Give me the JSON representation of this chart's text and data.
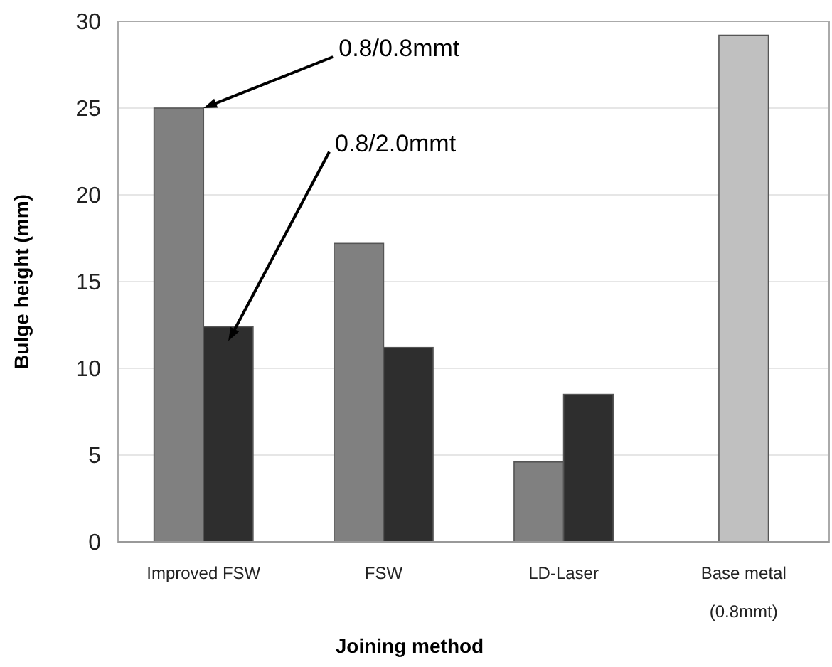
{
  "chart_data": {
    "type": "bar",
    "xlabel": "Joining method",
    "ylabel": "Bulge height  (mm)",
    "categories": [
      "Improved FSW",
      "FSW",
      "LD-Laser",
      "Base metal\n(0.8mmt)"
    ],
    "series": [
      {
        "name": "0.8/0.8mmt",
        "color": "#808080",
        "values": [
          25.0,
          17.2,
          4.6,
          null
        ]
      },
      {
        "name": "0.8/2.0mmt",
        "color": "#2e2e2e",
        "values": [
          12.4,
          11.2,
          8.5,
          null
        ]
      },
      {
        "color": "#c0c0c0",
        "values": [
          null,
          null,
          null,
          29.2
        ]
      }
    ],
    "ylim": [
      0,
      30
    ],
    "yticks": [
      0,
      5,
      10,
      15,
      20,
      25,
      30
    ],
    "grid": "y"
  }
}
